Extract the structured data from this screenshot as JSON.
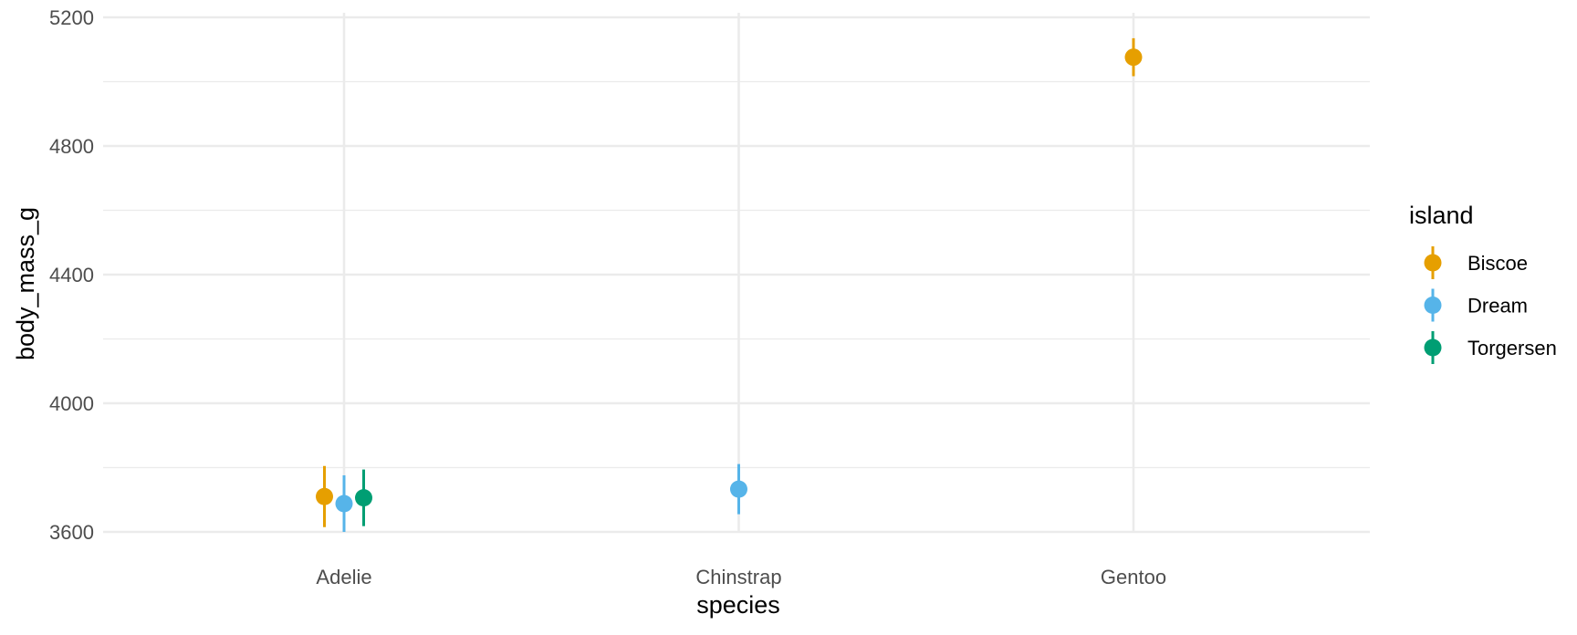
{
  "chart_data": {
    "type": "scatter",
    "subtype": "pointrange",
    "xlabel": "species",
    "ylabel": "body_mass_g",
    "categories": [
      "Adelie",
      "Chinstrap",
      "Gentoo"
    ],
    "ylim": [
      3600,
      5200
    ],
    "yticks": [
      3600,
      4000,
      4400,
      4800,
      5200
    ],
    "grid": true,
    "legend": {
      "title": "island",
      "position": "right",
      "entries": [
        {
          "label": "Biscoe",
          "color": "#E69F00"
        },
        {
          "label": "Dream",
          "color": "#56B4E9"
        },
        {
          "label": "Torgersen",
          "color": "#009E73"
        }
      ]
    },
    "series": [
      {
        "name": "Biscoe",
        "color": "#E69F00",
        "points": [
          {
            "category": "Adelie",
            "y": 3710,
            "ymin": 3615,
            "ymax": 3805
          },
          {
            "category": "Gentoo",
            "y": 5076,
            "ymin": 5017,
            "ymax": 5135
          }
        ]
      },
      {
        "name": "Dream",
        "color": "#56B4E9",
        "points": [
          {
            "category": "Adelie",
            "y": 3688,
            "ymin": 3600,
            "ymax": 3776
          },
          {
            "category": "Chinstrap",
            "y": 3733,
            "ymin": 3655,
            "ymax": 3811
          }
        ]
      },
      {
        "name": "Torgersen",
        "color": "#009E73",
        "points": [
          {
            "category": "Adelie",
            "y": 3706,
            "ymin": 3618,
            "ymax": 3794
          }
        ]
      }
    ]
  }
}
